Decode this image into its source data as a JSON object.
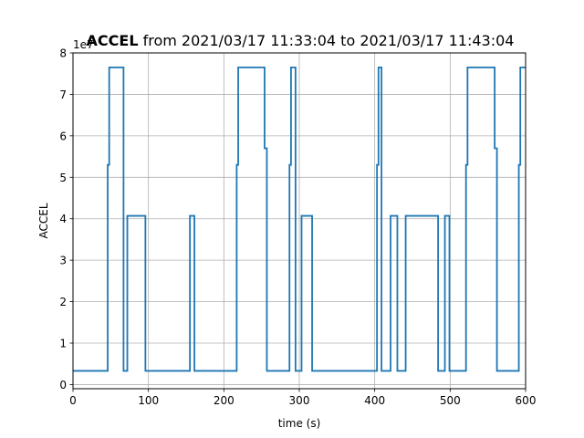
{
  "chart_data": {
    "type": "line",
    "title_bold": "ACCEL",
    "title_rest": " from 2021/03/17 11:33:04 to 2021/03/17 11:43:04",
    "xlabel": "time (s)",
    "ylabel": "ACCEL",
    "y_offset_text": "1e7",
    "xlim": [
      0,
      600
    ],
    "ylim": [
      -0.1,
      8
    ],
    "xticks": [
      0,
      100,
      200,
      300,
      400,
      500,
      600
    ],
    "yticks": [
      0,
      1,
      2,
      3,
      4,
      5,
      6,
      7,
      8
    ],
    "xtick_labels": [
      "0",
      "100",
      "200",
      "300",
      "400",
      "500",
      "600"
    ],
    "ytick_labels": [
      "0",
      "1",
      "2",
      "3",
      "4",
      "5",
      "6",
      "7",
      "8"
    ],
    "grid": true,
    "line_style": "steps",
    "series": [
      {
        "color": "#1f77b4",
        "x": [
          0,
          46,
          48,
          67,
          72,
          96,
          155,
          161,
          217,
          219,
          254,
          257,
          287,
          289,
          295,
          303,
          317,
          403,
          405,
          409,
          421,
          430,
          441,
          484,
          493,
          499,
          521,
          523,
          559,
          562,
          591,
          593,
          600
        ],
        "values": [
          0.33,
          5.3,
          7.65,
          0.33,
          4.07,
          0.33,
          4.07,
          0.33,
          5.3,
          7.65,
          5.7,
          0.33,
          5.3,
          7.65,
          0.33,
          4.07,
          0.33,
          5.3,
          7.65,
          0.33,
          4.07,
          0.33,
          4.07,
          0.33,
          4.07,
          0.33,
          5.3,
          7.65,
          5.7,
          0.33,
          5.3,
          7.65,
          7.65
        ]
      }
    ]
  }
}
